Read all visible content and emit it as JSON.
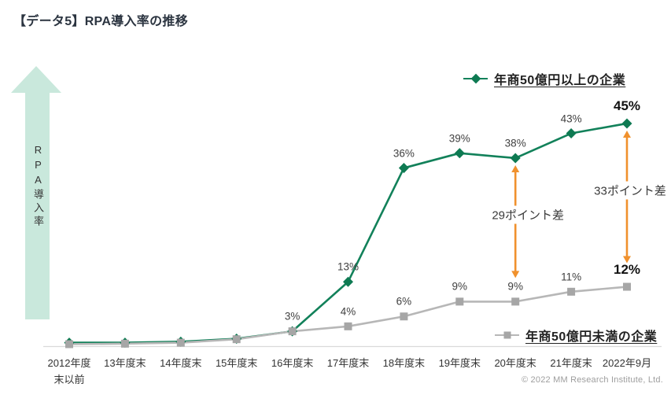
{
  "page": {
    "title": "【データ5】RPA導入率の推移",
    "copyright": "© 2022 MM Research Institute, Ltd."
  },
  "colors": {
    "large_series": "#12815A",
    "large_marker": "#0E7A52",
    "small_series": "#B7B7B7",
    "small_marker": "#A6A6A6",
    "diff_arrow": "#F0912D",
    "y_axis_arrow_fill": "#C9E8DC",
    "axis_line": "#D9D9D9"
  },
  "chart_data": {
    "type": "line",
    "title": "RPA導入率の推移",
    "ylabel": "RPA導入率",
    "xlabel": "",
    "ylim": [
      0,
      48
    ],
    "grid": false,
    "categories": [
      "2012年度\n末以前",
      "13年度末",
      "14年度末",
      "15年度末",
      "16年度末",
      "17年度末",
      "18年度末",
      "19年度末",
      "20年度末",
      "21年度末",
      "2022年9月"
    ],
    "series": [
      {
        "name": "年商50億円以上の企業",
        "marker": "diamond",
        "color": "#12815A",
        "marker_color": "#0E7A52",
        "legend_position": "top-right",
        "values": [
          0.7,
          0.7,
          0.9,
          1.5,
          3,
          13,
          36,
          39,
          38,
          43,
          45
        ],
        "point_labels": [
          "",
          "",
          "",
          "",
          "3%",
          "13%",
          "36%",
          "39%",
          "38%",
          "43%",
          "45%"
        ],
        "final_label_bold": true
      },
      {
        "name": "年商50億円未満の企業",
        "marker": "square",
        "color": "#B7B7B7",
        "marker_color": "#A6A6A6",
        "legend_position": "bottom-right",
        "values": [
          0.4,
          0.5,
          0.7,
          1.4,
          3,
          4,
          6,
          9,
          9,
          11,
          12
        ],
        "point_labels": [
          "",
          "",
          "",
          "",
          "",
          "4%",
          "6%",
          "9%",
          "9%",
          "11%",
          "12%"
        ],
        "final_label_bold": true
      }
    ],
    "annotations": [
      {
        "category_index": 8,
        "from_value": 9,
        "to_value": 38,
        "label": "29ポイント差"
      },
      {
        "category_index": 10,
        "from_value": 12,
        "to_value": 45,
        "label": "33ポイント差"
      }
    ]
  }
}
